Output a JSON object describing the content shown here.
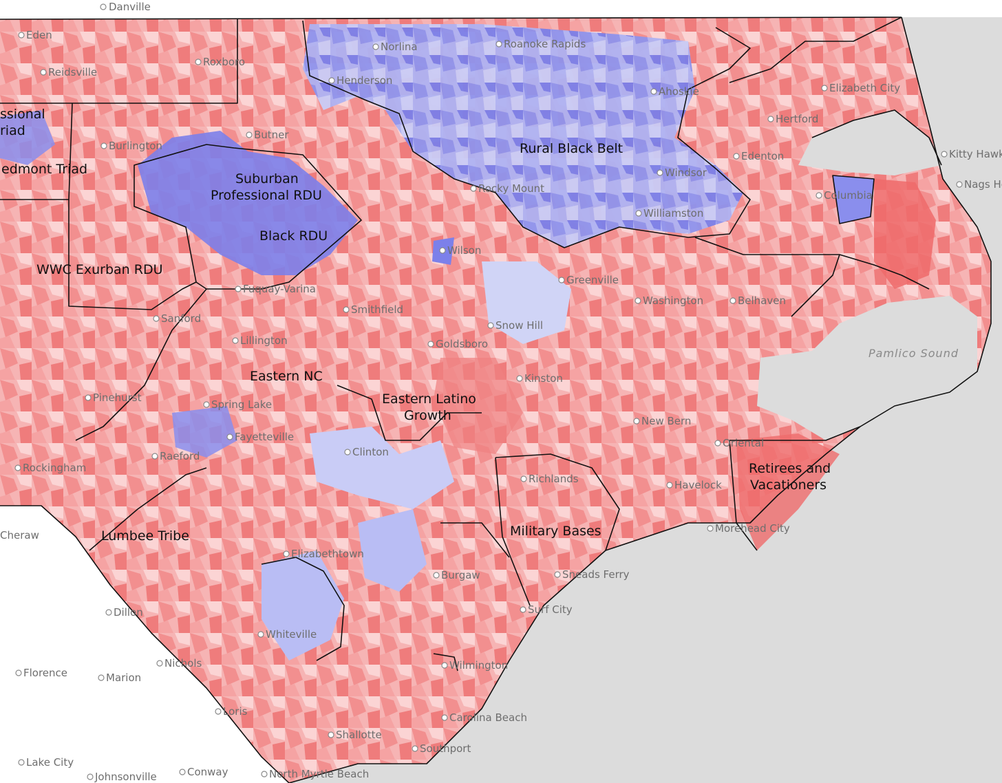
{
  "map": {
    "water_label": "Pamlico Sound",
    "colors": {
      "water": "#dcdcdc",
      "land_base": "#ffffff",
      "dem_strong": "#5b5ee6",
      "dem_mid": "#9ea2f0",
      "dem_light": "#d4d8f7",
      "rep_strong": "#ef5a5a",
      "rep_mid": "#f59a9a",
      "rep_light": "#fad2d2",
      "border": "#111111"
    },
    "regions": [
      "Rural Black Belt",
      "Suburban Professional RDU",
      "Black RDU",
      "WWC Exurban RDU",
      "edmont Triad",
      "ssional riad",
      "Eastern NC",
      "Eastern Latino Growth",
      "Retirees and Vacationers",
      "Military Bases",
      "Lumbee Tribe"
    ],
    "cities": [
      "Danville",
      "Eden",
      "Reidsville",
      "Roxboro",
      "Norlina",
      "Roanoke Rapids",
      "Henderson",
      "Elizabeth City",
      "Ahoskie",
      "Hertford",
      "Butner",
      "Burlington",
      "Kitty Hawk",
      "Edenton",
      "Nags Head",
      "Windsor",
      "Rocky Mount",
      "Columbia",
      "Williamston",
      "Wilson",
      "Greenville",
      "Washington",
      "Belhaven",
      "Fuquay-Varina",
      "Smithfield",
      "Sanford",
      "Lillington",
      "Snow Hill",
      "Goldsboro",
      "Kinston",
      "Pinehurst",
      "Spring Lake",
      "Fayetteville",
      "New Bern",
      "Oriental",
      "Clinton",
      "Raeford",
      "Rockingham",
      "Richlands",
      "Havelock",
      "Morehead City",
      "Cheraw",
      "Elizabethtown",
      "Burgaw",
      "Sneads Ferry",
      "Surf City",
      "Dillon",
      "Whiteville",
      "Wilmington",
      "Nichols",
      "Florence",
      "Marion",
      "Loris",
      "Carolina Beach",
      "Shallotte",
      "Southport",
      "Lake City",
      "Conway",
      "Johnsonville",
      "North Myrtle Beach",
      "Pamlico Sound"
    ]
  }
}
